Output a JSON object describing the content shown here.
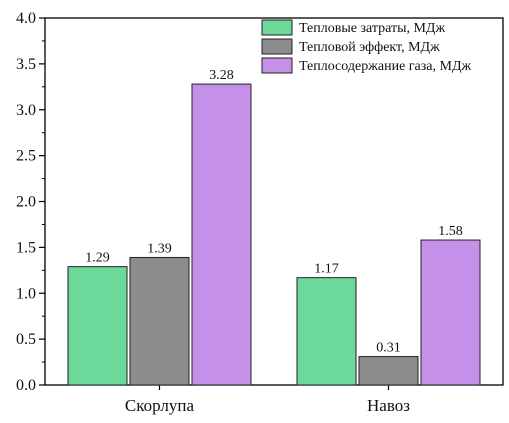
{
  "chart_data": {
    "type": "bar",
    "categories": [
      "Скорлупа",
      "Навоз"
    ],
    "series": [
      {
        "name": "Тепловые затраты, МДж",
        "values": [
          1.29,
          1.17
        ],
        "color": "#6cd89a"
      },
      {
        "name": "Тепловой эффект, МДж",
        "values": [
          1.39,
          0.31
        ],
        "color": "#8c8c8c"
      },
      {
        "name": "Теплосодержание газа, МДж",
        "values": [
          3.28,
          1.58
        ],
        "color": "#c590e8"
      }
    ],
    "data_labels": [
      [
        "1.29",
        "1.17"
      ],
      [
        "1.39",
        "0.31"
      ],
      [
        "3.28",
        "1.58"
      ]
    ],
    "ylim": [
      0,
      4.0
    ],
    "yticks": [
      "0.0",
      "0.5",
      "1.0",
      "1.5",
      "2.0",
      "2.5",
      "3.0",
      "3.5",
      "4.0"
    ],
    "ytick_values": [
      0,
      0.5,
      1.0,
      1.5,
      2.0,
      2.5,
      3.0,
      3.5,
      4.0
    ],
    "xlabel": "",
    "ylabel": "",
    "title": "",
    "legend_position": "top-right",
    "grid": false
  }
}
